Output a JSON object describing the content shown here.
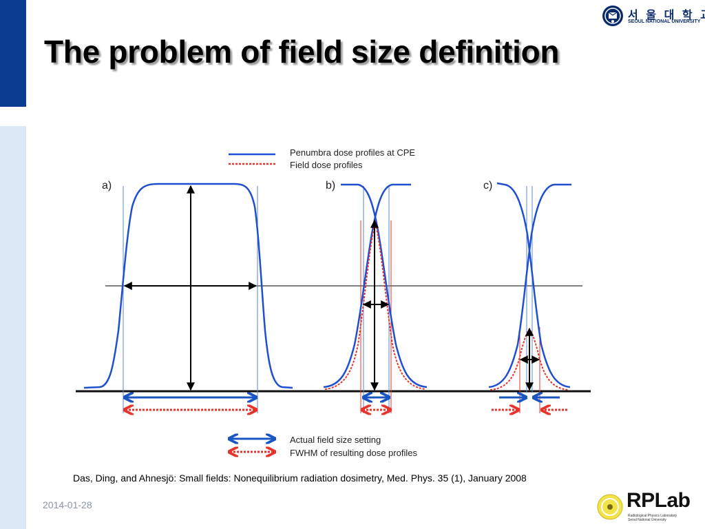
{
  "slide": {
    "title": "The problem of field size definition",
    "citation": "Das, Ding, and Ahnesjö: Small fields: Nonequilibrium radiation dosimetry, Med. Phys. 35 (1), January 2008",
    "date": "2014-01-28"
  },
  "university_logo": {
    "name_kr": "서 울 대 학 교",
    "name_en": "SEOUL NATIONAL UNIVERSITY",
    "icon": "university-emblem-icon"
  },
  "lab_logo": {
    "name": "RPLab",
    "subtitle_line1": "Radiological Physics Laboratory",
    "subtitle_line2": "Seoul National University",
    "icon": "lab-emblem-icon"
  },
  "figure": {
    "panel_labels": [
      "a)",
      "b)",
      "c)"
    ],
    "legend_top": [
      "Penumbra dose profiles at CPE",
      "Field dose profiles"
    ],
    "legend_bottom": [
      "Actual field size setting",
      "FWHM of resulting dose profiles"
    ]
  },
  "colors": {
    "accent_blue": "#0a3d91",
    "side_light": "#dce8f5",
    "profile_blue": "#1f4fd0",
    "fwhm_red": "#e8332a",
    "arrow_blue": "#1a55c4"
  }
}
